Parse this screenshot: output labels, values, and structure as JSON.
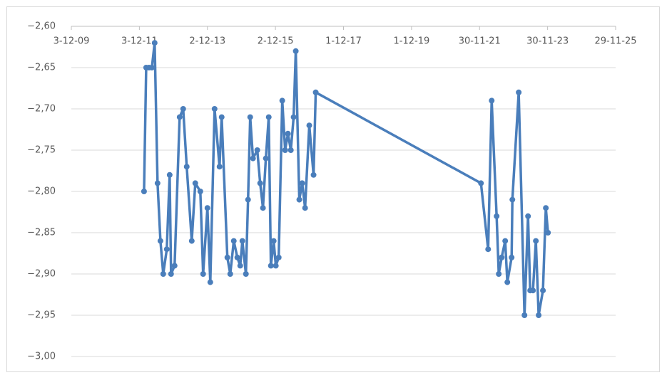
{
  "chart_data": {
    "type": "line",
    "color": "#4a7ebb",
    "grid": true,
    "markers": true,
    "x": [
      "2012-01-22",
      "2012-02-14",
      "2012-03-15",
      "2012-04-15",
      "2012-05-15",
      "2012-06-15",
      "2012-07-16",
      "2012-08-15",
      "2012-09-22",
      "2012-10-23",
      "2012-11-07",
      "2012-12-15",
      "2013-02-07",
      "2013-03-17",
      "2013-04-24",
      "2013-06-17",
      "2013-07-25",
      "2013-09-17",
      "2013-10-17",
      "2013-12-02",
      "2014-01-02",
      "2014-02-17",
      "2014-04-11",
      "2014-05-04",
      "2014-07-04",
      "2014-08-04",
      "2014-09-11",
      "2014-10-19",
      "2014-11-19",
      "2014-12-12",
      "2015-01-19",
      "2015-02-11",
      "2015-03-06",
      "2015-04-05",
      "2015-05-21",
      "2015-06-21",
      "2015-07-21",
      "2015-08-21",
      "2015-09-21",
      "2015-10-14",
      "2015-11-13",
      "2015-12-06",
      "2016-01-06",
      "2016-02-13",
      "2016-03-15",
      "2016-04-14",
      "2016-05-15",
      "2016-06-14",
      "2016-07-07",
      "2016-08-14",
      "2016-09-14",
      "2016-10-15",
      "2016-11-29",
      "2017-01-14",
      "2017-02-06",
      "2021-12-15",
      "2022-03-02",
      "2022-04-09",
      "2022-06-01",
      "2022-06-24",
      "2022-07-25",
      "2022-09-01",
      "2022-09-24",
      "2022-11-09",
      "2022-11-17",
      "2023-01-24",
      "2023-03-27",
      "2023-05-04",
      "2023-05-27",
      "2023-06-26",
      "2023-07-27",
      "2023-08-26",
      "2023-10-11",
      "2023-11-11",
      "2023-12-04"
    ],
    "values": [
      -2.8,
      -2.65,
      -2.65,
      -2.65,
      -2.62,
      -2.79,
      -2.86,
      -2.9,
      -2.87,
      -2.78,
      -2.9,
      -2.89,
      -2.71,
      -2.7,
      -2.77,
      -2.86,
      -2.79,
      -2.8,
      -2.9,
      -2.82,
      -2.91,
      -2.7,
      -2.77,
      -2.71,
      -2.88,
      -2.9,
      -2.86,
      -2.88,
      -2.89,
      -2.86,
      -2.9,
      -2.81,
      -2.71,
      -2.76,
      -2.75,
      -2.79,
      -2.82,
      -2.76,
      -2.71,
      -2.89,
      -2.86,
      -2.89,
      -2.88,
      -2.69,
      -2.75,
      -2.73,
      -2.75,
      -2.71,
      -2.63,
      -2.81,
      -2.79,
      -2.82,
      -2.72,
      -2.78,
      -2.68,
      -2.79,
      -2.87,
      -2.69,
      -2.83,
      -2.9,
      -2.88,
      -2.86,
      -2.91,
      -2.88,
      -2.81,
      -2.68,
      -2.95,
      -2.83,
      -2.92,
      -2.92,
      -2.86,
      -2.95,
      -2.92,
      -2.82,
      -2.85
    ],
    "xlim": [
      "2009-12-03",
      "2025-11-29"
    ],
    "xticks": [
      {
        "value": "2009-12-03",
        "label": "3-12-09"
      },
      {
        "value": "2011-12-03",
        "label": "3-12-11"
      },
      {
        "value": "2013-12-02",
        "label": "2-12-13"
      },
      {
        "value": "2015-12-02",
        "label": "2-12-15"
      },
      {
        "value": "2017-12-01",
        "label": "1-12-17"
      },
      {
        "value": "2019-12-01",
        "label": "1-12-19"
      },
      {
        "value": "2021-11-30",
        "label": "30-11-21"
      },
      {
        "value": "2023-11-30",
        "label": "30-11-23"
      },
      {
        "value": "2025-11-29",
        "label": "29-11-25"
      }
    ],
    "ylim": [
      -3.0,
      -2.6
    ],
    "yticks": [
      {
        "value": -3.0,
        "label": "−3,00"
      },
      {
        "value": -2.95,
        "label": "−2,95"
      },
      {
        "value": -2.9,
        "label": "−2,90"
      },
      {
        "value": -2.85,
        "label": "−2,85"
      },
      {
        "value": -2.8,
        "label": "−2,80"
      },
      {
        "value": -2.75,
        "label": "−2,75"
      },
      {
        "value": -2.7,
        "label": "−2,70"
      },
      {
        "value": -2.65,
        "label": "−2,65"
      },
      {
        "value": -2.6,
        "label": "−2,60"
      }
    ]
  }
}
